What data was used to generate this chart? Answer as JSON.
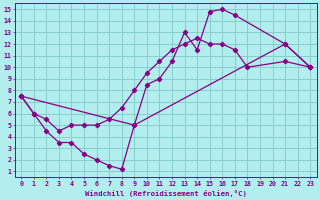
{
  "xlabel": "Windchill (Refroidissement éolien,°C)",
  "bg_color": "#b2eeee",
  "line_color": "#880088",
  "grid_color": "#88cccc",
  "xlim": [
    -0.5,
    23.5
  ],
  "ylim": [
    0.5,
    15.5
  ],
  "xticks": [
    0,
    1,
    2,
    3,
    4,
    5,
    6,
    7,
    8,
    9,
    10,
    11,
    12,
    13,
    14,
    15,
    16,
    17,
    18,
    19,
    20,
    21,
    22,
    23
  ],
  "yticks": [
    1,
    2,
    3,
    4,
    5,
    6,
    7,
    8,
    9,
    10,
    11,
    12,
    13,
    14,
    15
  ],
  "line1_x": [
    0,
    1,
    2,
    3,
    4,
    5,
    6,
    7,
    8,
    9,
    10,
    11,
    12,
    13,
    14,
    15,
    16,
    17,
    18,
    21,
    23
  ],
  "line1_y": [
    7.5,
    6.0,
    5.5,
    4.5,
    5.0,
    5.0,
    5.0,
    5.5,
    6.5,
    8.0,
    9.5,
    10.5,
    11.5,
    12.0,
    12.5,
    12.0,
    12.0,
    11.5,
    10.0,
    10.5,
    10.0
  ],
  "line2_x": [
    0,
    9,
    10,
    11,
    12,
    13,
    14,
    15,
    16,
    17,
    21,
    23
  ],
  "line2_y": [
    7.5,
    5.0,
    8.5,
    9.0,
    10.5,
    13.0,
    11.5,
    14.8,
    15.0,
    14.5,
    12.0,
    10.0
  ],
  "line3_x": [
    0,
    1,
    2,
    3,
    4,
    5,
    6,
    7,
    8,
    9,
    21,
    23
  ],
  "line3_y": [
    7.5,
    6.0,
    4.5,
    3.5,
    3.5,
    2.5,
    2.0,
    1.5,
    1.2,
    5.0,
    12.0,
    10.0
  ]
}
